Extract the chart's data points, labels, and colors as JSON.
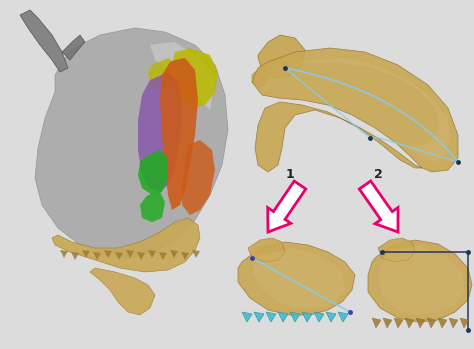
{
  "background_color": "#dcdcdc",
  "figure_width": 4.74,
  "figure_height": 3.49,
  "dpi": 100,
  "arrow_color": "#e8006e",
  "arrow1_label": "1",
  "arrow2_label": "2",
  "label_fontsize": 9,
  "label_color": "#222222",
  "mandible_color": "#c8a855",
  "mandible_dark": "#9a7830",
  "mandible_light": "#d9bc7a",
  "muscle_orange": "#cc5a18",
  "muscle_purple": "#8855aa",
  "muscle_yellow": "#b8b800",
  "muscle_green": "#22aa22",
  "line_blue": "#88ccee",
  "line_dark": "#223355",
  "gray_head": "#a8a8a8",
  "gray_dark": "#707070",
  "gray_light": "#d5d5d5"
}
